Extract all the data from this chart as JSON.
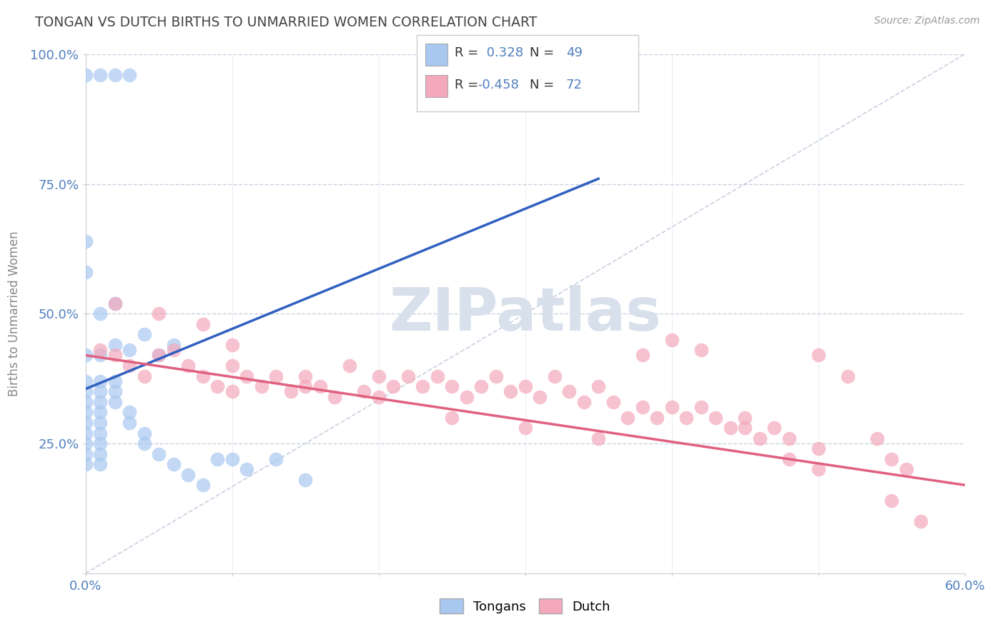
{
  "title": "TONGAN VS DUTCH BIRTHS TO UNMARRIED WOMEN CORRELATION CHART",
  "source": "Source: ZipAtlas.com",
  "ylabel": "Births to Unmarried Women",
  "xmin": 0.0,
  "xmax": 0.6,
  "ymin": 0.0,
  "ymax": 1.0,
  "x_ticks": [
    0.0,
    0.1,
    0.2,
    0.3,
    0.4,
    0.5,
    0.6
  ],
  "x_tick_labels": [
    "0.0%",
    "",
    "",
    "",
    "",
    "",
    "60.0%"
  ],
  "y_ticks": [
    0.0,
    0.25,
    0.5,
    0.75,
    1.0
  ],
  "y_tick_labels": [
    "",
    "25.0%",
    "50.0%",
    "75.0%",
    "100.0%"
  ],
  "tongans_R": 0.328,
  "tongans_N": 49,
  "dutch_R": -0.458,
  "dutch_N": 72,
  "tongans_color": "#a8c8f0",
  "dutch_color": "#f4a8bc",
  "tongans_line_color": "#3060c0",
  "dutch_line_color": "#e06080",
  "diagonal_color": "#c8d0e0",
  "background_color": "#ffffff",
  "grid_color": "#c8d0e0",
  "watermark_color": "#d8e0ec",
  "title_color": "#444444",
  "tick_color": "#5080c0",
  "tongans_scatter": [
    [
      0.0,
      0.96
    ],
    [
      0.01,
      0.96
    ],
    [
      0.02,
      0.96
    ],
    [
      0.03,
      0.96
    ],
    [
      0.0,
      0.42
    ],
    [
      0.0,
      0.58
    ],
    [
      0.0,
      0.64
    ],
    [
      0.0,
      0.37
    ],
    [
      0.0,
      0.35
    ],
    [
      0.0,
      0.33
    ],
    [
      0.0,
      0.31
    ],
    [
      0.0,
      0.29
    ],
    [
      0.0,
      0.27
    ],
    [
      0.0,
      0.25
    ],
    [
      0.0,
      0.23
    ],
    [
      0.0,
      0.21
    ],
    [
      0.01,
      0.37
    ],
    [
      0.01,
      0.35
    ],
    [
      0.01,
      0.33
    ],
    [
      0.01,
      0.31
    ],
    [
      0.01,
      0.29
    ],
    [
      0.01,
      0.27
    ],
    [
      0.01,
      0.25
    ],
    [
      0.01,
      0.23
    ],
    [
      0.01,
      0.21
    ],
    [
      0.02,
      0.37
    ],
    [
      0.02,
      0.35
    ],
    [
      0.02,
      0.33
    ],
    [
      0.03,
      0.31
    ],
    [
      0.03,
      0.29
    ],
    [
      0.04,
      0.27
    ],
    [
      0.04,
      0.25
    ],
    [
      0.05,
      0.23
    ],
    [
      0.06,
      0.21
    ],
    [
      0.07,
      0.19
    ],
    [
      0.08,
      0.17
    ],
    [
      0.09,
      0.22
    ],
    [
      0.1,
      0.22
    ],
    [
      0.11,
      0.2
    ],
    [
      0.13,
      0.22
    ],
    [
      0.15,
      0.18
    ],
    [
      0.03,
      0.43
    ],
    [
      0.04,
      0.46
    ],
    [
      0.05,
      0.42
    ],
    [
      0.06,
      0.44
    ],
    [
      0.01,
      0.42
    ],
    [
      0.02,
      0.44
    ],
    [
      0.01,
      0.5
    ],
    [
      0.02,
      0.52
    ]
  ],
  "dutch_scatter": [
    [
      0.01,
      0.43
    ],
    [
      0.02,
      0.42
    ],
    [
      0.03,
      0.4
    ],
    [
      0.04,
      0.38
    ],
    [
      0.05,
      0.42
    ],
    [
      0.06,
      0.43
    ],
    [
      0.07,
      0.4
    ],
    [
      0.08,
      0.38
    ],
    [
      0.09,
      0.36
    ],
    [
      0.1,
      0.4
    ],
    [
      0.11,
      0.38
    ],
    [
      0.12,
      0.36
    ],
    [
      0.13,
      0.38
    ],
    [
      0.14,
      0.35
    ],
    [
      0.15,
      0.38
    ],
    [
      0.16,
      0.36
    ],
    [
      0.17,
      0.34
    ],
    [
      0.18,
      0.4
    ],
    [
      0.19,
      0.35
    ],
    [
      0.2,
      0.38
    ],
    [
      0.21,
      0.36
    ],
    [
      0.22,
      0.38
    ],
    [
      0.23,
      0.36
    ],
    [
      0.24,
      0.38
    ],
    [
      0.25,
      0.36
    ],
    [
      0.26,
      0.34
    ],
    [
      0.27,
      0.36
    ],
    [
      0.28,
      0.38
    ],
    [
      0.29,
      0.35
    ],
    [
      0.3,
      0.36
    ],
    [
      0.31,
      0.34
    ],
    [
      0.32,
      0.38
    ],
    [
      0.33,
      0.35
    ],
    [
      0.34,
      0.33
    ],
    [
      0.35,
      0.36
    ],
    [
      0.36,
      0.33
    ],
    [
      0.37,
      0.3
    ],
    [
      0.38,
      0.32
    ],
    [
      0.39,
      0.3
    ],
    [
      0.4,
      0.32
    ],
    [
      0.41,
      0.3
    ],
    [
      0.42,
      0.32
    ],
    [
      0.43,
      0.3
    ],
    [
      0.44,
      0.28
    ],
    [
      0.45,
      0.3
    ],
    [
      0.46,
      0.26
    ],
    [
      0.47,
      0.28
    ],
    [
      0.48,
      0.26
    ],
    [
      0.5,
      0.42
    ],
    [
      0.5,
      0.24
    ],
    [
      0.52,
      0.38
    ],
    [
      0.54,
      0.26
    ],
    [
      0.55,
      0.22
    ],
    [
      0.56,
      0.2
    ],
    [
      0.02,
      0.52
    ],
    [
      0.05,
      0.5
    ],
    [
      0.08,
      0.48
    ],
    [
      0.1,
      0.44
    ],
    [
      0.15,
      0.36
    ],
    [
      0.2,
      0.34
    ],
    [
      0.25,
      0.3
    ],
    [
      0.3,
      0.28
    ],
    [
      0.35,
      0.26
    ],
    [
      0.4,
      0.45
    ],
    [
      0.42,
      0.43
    ],
    [
      0.45,
      0.28
    ],
    [
      0.48,
      0.22
    ],
    [
      0.5,
      0.2
    ],
    [
      0.55,
      0.14
    ],
    [
      0.57,
      0.1
    ],
    [
      0.1,
      0.35
    ],
    [
      0.38,
      0.42
    ]
  ],
  "tongans_line": [
    [
      0.0,
      0.355
    ],
    [
      0.35,
      0.76
    ]
  ],
  "dutch_line": [
    [
      0.0,
      0.42
    ],
    [
      0.6,
      0.17
    ]
  ]
}
